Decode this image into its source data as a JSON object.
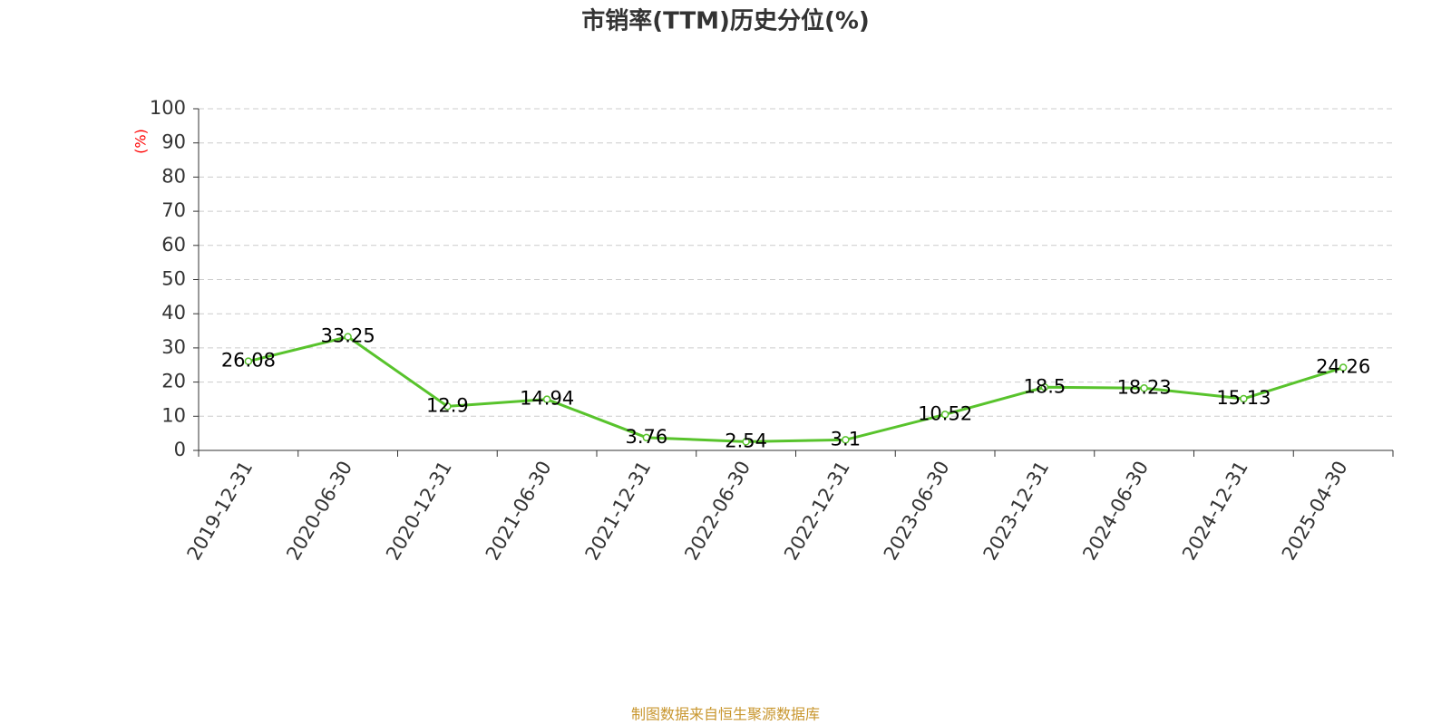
{
  "chart_data": {
    "type": "line",
    "title": "市销率(TTM)历史分位(%)",
    "y_label": "(%)",
    "y_label_color": "#ff0000",
    "categories": [
      "2019-12-31",
      "2020-06-30",
      "2020-12-31",
      "2021-06-30",
      "2021-12-31",
      "2022-06-30",
      "2022-12-31",
      "2023-06-30",
      "2023-12-31",
      "2024-06-30",
      "2024-12-31",
      "2025-04-30"
    ],
    "values": [
      26.08,
      33.25,
      12.9,
      14.94,
      3.76,
      2.54,
      3.1,
      10.52,
      18.5,
      18.23,
      15.13,
      24.26
    ],
    "color": "#58c32c",
    "ylim": [
      0,
      100
    ],
    "yticks": [
      0,
      10,
      20,
      30,
      40,
      50,
      60,
      70,
      80,
      90,
      100
    ],
    "grid": true,
    "source": "制图数据来自恒生聚源数据库"
  }
}
